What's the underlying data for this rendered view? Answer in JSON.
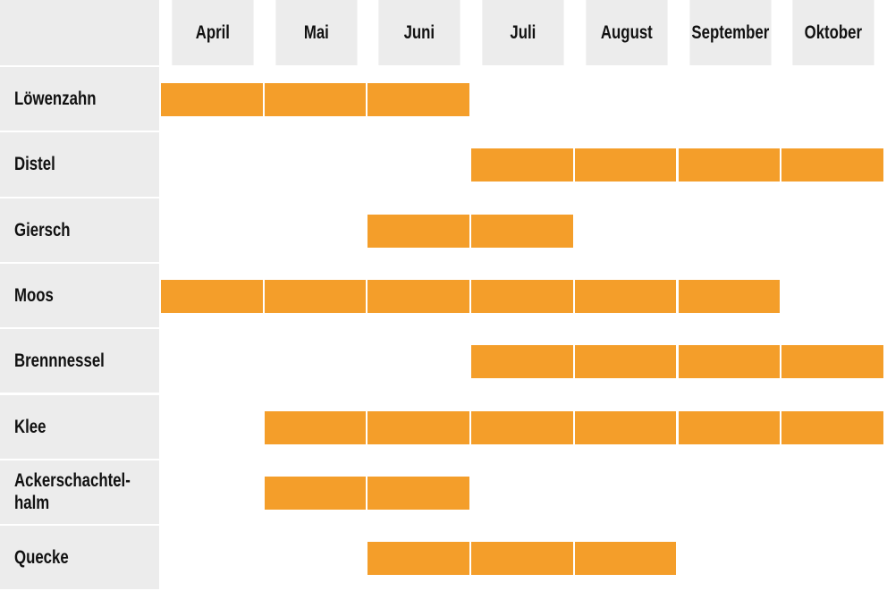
{
  "chart_data": {
    "type": "table",
    "months": [
      "April",
      "Mai",
      "Juni",
      "Juli",
      "August",
      "September",
      "Oktober"
    ],
    "rows": [
      {
        "label": "Löwenzahn",
        "active": [
          "April",
          "Mai",
          "Juni"
        ]
      },
      {
        "label": "Distel",
        "active": [
          "Juli",
          "August",
          "September",
          "Oktober"
        ]
      },
      {
        "label": "Giersch",
        "active": [
          "Juni",
          "Juli"
        ]
      },
      {
        "label": "Moos",
        "active": [
          "April",
          "Mai",
          "Juni",
          "Juli",
          "August",
          "September"
        ]
      },
      {
        "label": "Brennnessel",
        "active": [
          "Juli",
          "August",
          "September",
          "Oktober"
        ]
      },
      {
        "label": "Klee",
        "active": [
          "Mai",
          "Juni",
          "Juli",
          "August",
          "September",
          "Oktober"
        ]
      },
      {
        "label": "Ackerschachtel-\nhalm",
        "active": [
          "Mai",
          "Juni"
        ]
      },
      {
        "label": "Quecke",
        "active": [
          "Juni",
          "Juli",
          "August"
        ]
      }
    ],
    "colors": {
      "bar": "#f49e2a",
      "header_bg": "#ececec"
    }
  }
}
